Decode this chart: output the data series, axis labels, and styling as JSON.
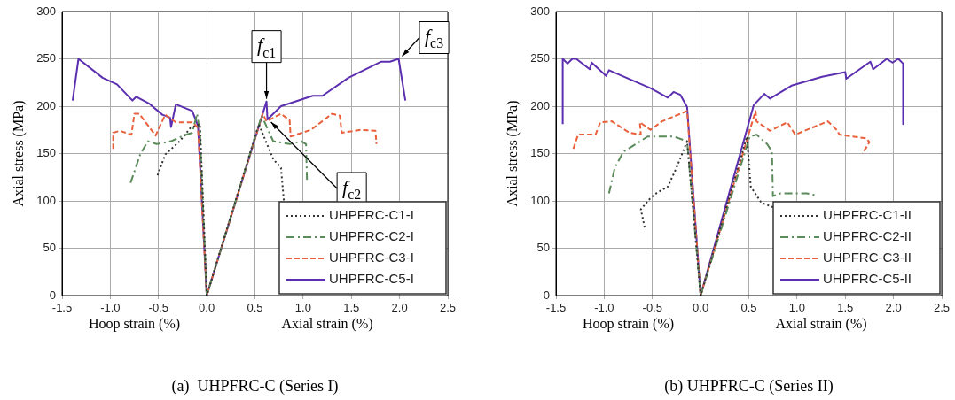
{
  "chart_data": [
    {
      "type": "line",
      "title": "(a)  UHPFRC-C (Series I)",
      "xlabel": "Hoop strain (%)",
      "ylabel": "Axial stress (MPa)",
      "annotations": [
        "Axial strain (%)",
        {
          "text": "f$_{c1}$",
          "x": 0.62,
          "y": 205
        },
        {
          "text": "f$_{c2}$",
          "x": 0.63,
          "y": 186
        },
        {
          "text": "f$_{c3}$",
          "x": 1.99,
          "y": 250
        }
      ],
      "xlim": [
        -1.5,
        2.5
      ],
      "xticks": [
        -1.5,
        {
          "value": -1,
          "label": "-1.0"
        },
        -0.5,
        {
          "value": 0,
          "label": "0.0"
        },
        0.5,
        {
          "value": 1,
          "label": "1.0"
        },
        1.5,
        {
          "value": 2,
          "label": "2.0"
        },
        2.5
      ],
      "ylim": [
        0,
        300
      ],
      "yticks": [
        0,
        50,
        100,
        150,
        200,
        250,
        300
      ],
      "grid": true,
      "legend": "bottom right",
      "marker": "none",
      "series": [
        {
          "name": "UHPFRC-C1-I",
          "color": "#333333",
          "line_style": "dotted",
          "x": [
            -0.51,
            -0.43,
            -0.28,
            -0.17,
            -0.07,
            0,
            0.54,
            0.69,
            0.77,
            0.8
          ],
          "values": [
            127,
            149,
            163,
            177,
            181,
            0,
            181,
            144,
            135,
            100
          ]
        },
        {
          "name": "UHPFRC-C2-I",
          "color": "#5b8a5b",
          "line_style": "dashdot",
          "x": [
            -0.79,
            -0.69,
            -0.61,
            -0.52,
            -0.37,
            -0.24,
            -0.15,
            -0.1,
            -0.07,
            0,
            0.57,
            0.64,
            0.69,
            0.86,
            0.98,
            1.03,
            1.04
          ],
          "values": [
            119,
            149,
            163,
            160,
            163,
            169,
            172,
            192,
            172,
            0,
            190,
            174,
            163,
            160,
            163,
            160,
            121
          ]
        },
        {
          "name": "UHPFRC-C3-I",
          "color": "#e8603c",
          "line_style": "dashed",
          "x": [
            -0.97,
            -0.97,
            -0.9,
            -0.78,
            -0.75,
            -0.7,
            -0.53,
            -0.43,
            -0.32,
            -0.15,
            -0.09,
            0,
            0.58,
            0.62,
            0.77,
            0.86,
            0.87,
            1.08,
            1.3,
            1.38,
            1.4,
            1.6,
            1.75,
            1.76
          ],
          "values": [
            155,
            172,
            174,
            170,
            192,
            192,
            169,
            191,
            183,
            183,
            177,
            0,
            192,
            184,
            192,
            185,
            168,
            175,
            192,
            190,
            172,
            175,
            174,
            160
          ]
        },
        {
          "name": "UHPFRC-C5-I",
          "color": "#5b2fb0",
          "line_style": "solid",
          "x": [
            -1.39,
            -1.33,
            -1.08,
            -0.93,
            -0.77,
            -0.73,
            -0.6,
            -0.46,
            -0.38,
            -0.37,
            -0.32,
            -0.15,
            -0.09,
            0,
            0.62,
            0.63,
            0.77,
            1.1,
            1.2,
            1.47,
            1.81,
            1.9,
            1.99,
            2.06
          ],
          "values": [
            206,
            250,
            230,
            223,
            206,
            210,
            203,
            191,
            188,
            178,
            202,
            195,
            179,
            0,
            205,
            186,
            200,
            211,
            211,
            230,
            247,
            247,
            250,
            206
          ]
        }
      ]
    },
    {
      "type": "line",
      "title": "(b) UHPFRC-C (Series II)",
      "xlabel": "Hoop strain (%)",
      "ylabel": "Axial stress (MPa)",
      "annotations": [
        "Axial strain (%)"
      ],
      "xlim": [
        -1.5,
        2.5
      ],
      "xticks": [
        -1.5,
        {
          "value": -1,
          "label": "-1.0"
        },
        -0.5,
        {
          "value": 0,
          "label": "0.0"
        },
        0.5,
        {
          "value": 1,
          "label": "1.0"
        },
        1.5,
        {
          "value": 2,
          "label": "2.0"
        },
        2.5
      ],
      "ylim": [
        0,
        300
      ],
      "yticks": [
        0,
        50,
        100,
        150,
        200,
        250,
        300
      ],
      "grid": true,
      "legend": "bottom right",
      "marker": "none",
      "series": [
        {
          "name": "UHPFRC-C1-II",
          "color": "#333333",
          "line_style": "dotted",
          "x": [
            -0.58,
            -0.62,
            -0.52,
            -0.46,
            -0.34,
            -0.25,
            -0.14,
            0,
            0.48,
            0.52,
            0.63,
            0.76
          ],
          "values": [
            72,
            91,
            103,
            108,
            115,
            135,
            163,
            0,
            168,
            115,
            98,
            93
          ]
        },
        {
          "name": "UHPFRC-C2-II",
          "color": "#5b8a5b",
          "line_style": "dashdot",
          "x": [
            -0.95,
            -0.89,
            -0.8,
            -0.64,
            -0.55,
            -0.28,
            -0.14,
            0,
            0.51,
            0.58,
            0.69,
            0.74,
            0.75,
            0.83,
            0.98,
            1.1,
            1.19
          ],
          "values": [
            108,
            135,
            152,
            162,
            168,
            168,
            163,
            0,
            168,
            170,
            160,
            152,
            105,
            108,
            108,
            108,
            106
          ]
        },
        {
          "name": "UHPFRC-C3-II",
          "color": "#e8603c",
          "line_style": "dashed",
          "x": [
            -1.32,
            -1.27,
            -1.09,
            -1.04,
            -0.92,
            -0.74,
            -0.62,
            -0.63,
            -0.52,
            -0.4,
            -0.21,
            -0.14,
            0,
            0.57,
            0.58,
            0.72,
            0.9,
            0.98,
            1.32,
            1.41,
            1.44,
            1.72,
            1.75,
            1.68
          ],
          "values": [
            155,
            170,
            170,
            183,
            184,
            172,
            170,
            183,
            175,
            184,
            192,
            195,
            0,
            195,
            184,
            174,
            183,
            170,
            184,
            175,
            170,
            166,
            162,
            150
          ]
        },
        {
          "name": "UHPFRC-C5-II",
          "color": "#5b2fb0",
          "line_style": "solid",
          "x": [
            -1.43,
            -1.43,
            -1.38,
            -1.33,
            -1.29,
            -1.15,
            -1.13,
            -0.98,
            -0.95,
            -0.77,
            -0.52,
            -0.34,
            -0.28,
            -0.21,
            -0.14,
            0,
            0.55,
            0.66,
            0.72,
            0.95,
            1.26,
            1.5,
            1.51,
            1.76,
            1.79,
            1.93,
            1.99,
            2.05,
            2.1,
            2.1
          ],
          "values": [
            181,
            250,
            245,
            250,
            250,
            239,
            246,
            232,
            238,
            230,
            219,
            209,
            215,
            212,
            199,
            0,
            201,
            213,
            208,
            222,
            231,
            236,
            229,
            247,
            239,
            250,
            246,
            250,
            245,
            181
          ]
        }
      ]
    }
  ]
}
